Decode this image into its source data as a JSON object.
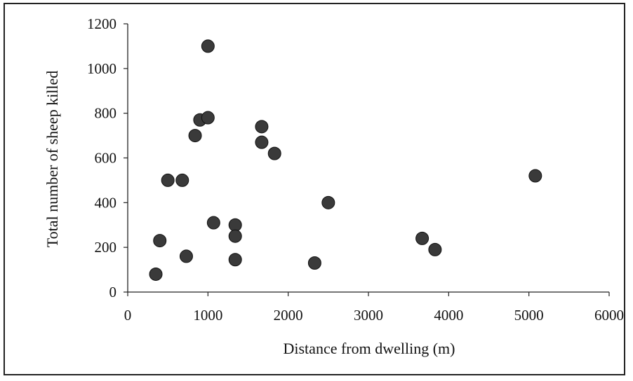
{
  "chart_data": {
    "type": "scatter",
    "title": "",
    "xlabel": "Distance from dwelling (m)",
    "ylabel": "Total number of sheep killed",
    "xlim": [
      0,
      6000
    ],
    "ylim": [
      0,
      1200
    ],
    "x_ticks": [
      0,
      1000,
      2000,
      3000,
      4000,
      5000,
      6000
    ],
    "y_ticks": [
      0,
      200,
      400,
      600,
      800,
      1000,
      1200
    ],
    "x_tick_labels": [
      "0",
      "1000",
      "2000",
      "3000",
      "4000",
      "5000",
      "6000"
    ],
    "y_tick_labels": [
      "0",
      "200",
      "400",
      "600",
      "800",
      "1000",
      "1200"
    ],
    "grid": false,
    "legend": "none",
    "marker_color": "#3a3a3a",
    "points": [
      {
        "x": 350,
        "y": 80
      },
      {
        "x": 400,
        "y": 230
      },
      {
        "x": 500,
        "y": 500
      },
      {
        "x": 680,
        "y": 500
      },
      {
        "x": 730,
        "y": 160
      },
      {
        "x": 840,
        "y": 700
      },
      {
        "x": 900,
        "y": 770
      },
      {
        "x": 1000,
        "y": 780
      },
      {
        "x": 1000,
        "y": 1100
      },
      {
        "x": 1070,
        "y": 310
      },
      {
        "x": 1340,
        "y": 300
      },
      {
        "x": 1340,
        "y": 250
      },
      {
        "x": 1340,
        "y": 145
      },
      {
        "x": 1670,
        "y": 740
      },
      {
        "x": 1670,
        "y": 670
      },
      {
        "x": 1830,
        "y": 620
      },
      {
        "x": 2330,
        "y": 130
      },
      {
        "x": 2500,
        "y": 400
      },
      {
        "x": 3670,
        "y": 240
      },
      {
        "x": 3830,
        "y": 190
      },
      {
        "x": 5080,
        "y": 520
      }
    ]
  }
}
